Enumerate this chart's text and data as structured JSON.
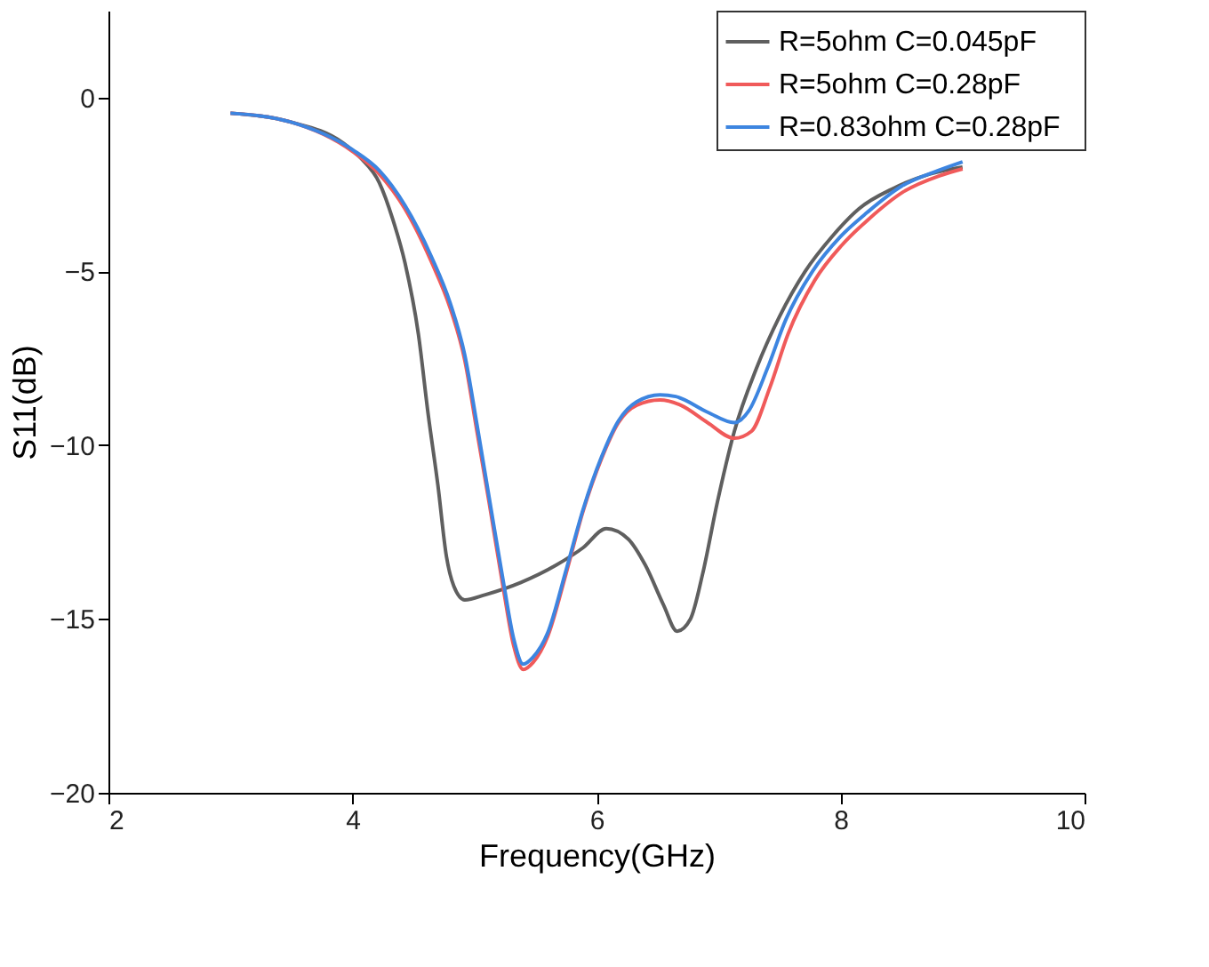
{
  "chart_data": {
    "type": "line",
    "xlabel": "Frequency(GHz)",
    "ylabel": "S11(dB)",
    "xlim": [
      2,
      10
    ],
    "xticks": [
      2,
      4,
      6,
      8,
      10
    ],
    "ylim": [
      -20,
      2.5
    ],
    "yticks": [
      -20,
      -15,
      -10,
      -5,
      0
    ],
    "grid": false,
    "legend": "top right",
    "marker": "none",
    "line_style": "solid",
    "series": [
      {
        "name": "R=5ohm   C=0.045pF",
        "color": "#5f5f5f",
        "x": [
          3.0,
          3.49,
          3.92,
          4.07,
          4.22,
          4.33,
          4.43,
          4.54,
          4.62,
          4.7,
          4.77,
          4.83,
          4.92,
          5.09,
          5.38,
          5.67,
          5.89,
          6.08,
          6.26,
          6.4,
          6.55,
          6.66,
          6.77,
          6.87,
          6.99,
          7.13,
          7.31,
          7.5,
          7.71,
          7.93,
          8.15,
          8.44,
          8.73,
          9.0
        ],
        "values": [
          -0.45,
          -0.7,
          -1.3,
          -1.75,
          -2.45,
          -3.5,
          -4.75,
          -6.8,
          -9.1,
          -11.15,
          -13.2,
          -14.05,
          -14.45,
          -14.3,
          -13.95,
          -13.45,
          -12.95,
          -12.4,
          -12.7,
          -13.45,
          -14.6,
          -15.35,
          -15.0,
          -13.7,
          -11.65,
          -9.6,
          -7.8,
          -6.3,
          -5.0,
          -4.0,
          -3.2,
          -2.6,
          -2.2,
          -2.0
        ]
      },
      {
        "name": "R=5ohm   C=0.28pF",
        "color": "#f05a5a",
        "x": [
          3.0,
          3.49,
          4.0,
          4.22,
          4.43,
          4.65,
          4.8,
          4.92,
          5.02,
          5.12,
          5.24,
          5.32,
          5.4,
          5.48,
          5.6,
          5.75,
          5.89,
          6.04,
          6.18,
          6.33,
          6.52,
          6.69,
          6.91,
          7.13,
          7.27,
          7.42,
          7.57,
          7.79,
          8.01,
          8.23,
          8.52,
          8.81,
          9.0
        ],
        "values": [
          -0.45,
          -0.7,
          -1.55,
          -2.2,
          -3.2,
          -4.75,
          -6.05,
          -7.55,
          -9.6,
          -11.65,
          -14.2,
          -15.75,
          -16.45,
          -16.25,
          -15.5,
          -13.7,
          -11.9,
          -10.4,
          -9.35,
          -8.85,
          -8.7,
          -8.85,
          -9.35,
          -9.8,
          -9.6,
          -8.35,
          -6.8,
          -5.25,
          -4.25,
          -3.5,
          -2.7,
          -2.25,
          -2.05
        ]
      },
      {
        "name": "R=0.83ohm   C=0.28pF",
        "color": "#3d85e0",
        "x": [
          3.0,
          3.49,
          4.0,
          4.22,
          4.43,
          4.65,
          4.8,
          4.92,
          5.02,
          5.12,
          5.24,
          5.32,
          5.4,
          5.48,
          5.6,
          5.75,
          5.89,
          6.04,
          6.18,
          6.33,
          6.52,
          6.65,
          6.91,
          7.13,
          7.25,
          7.4,
          7.55,
          7.77,
          8.0,
          8.22,
          8.5,
          8.8,
          9.0
        ],
        "values": [
          -0.45,
          -0.7,
          -1.5,
          -2.1,
          -3.1,
          -4.6,
          -5.9,
          -7.4,
          -9.4,
          -11.5,
          -14.0,
          -15.55,
          -16.3,
          -16.1,
          -15.4,
          -13.6,
          -11.85,
          -10.35,
          -9.3,
          -8.75,
          -8.55,
          -8.6,
          -9.05,
          -9.35,
          -9.0,
          -7.8,
          -6.4,
          -5.0,
          -4.0,
          -3.3,
          -2.55,
          -2.1,
          -1.85
        ]
      }
    ]
  }
}
